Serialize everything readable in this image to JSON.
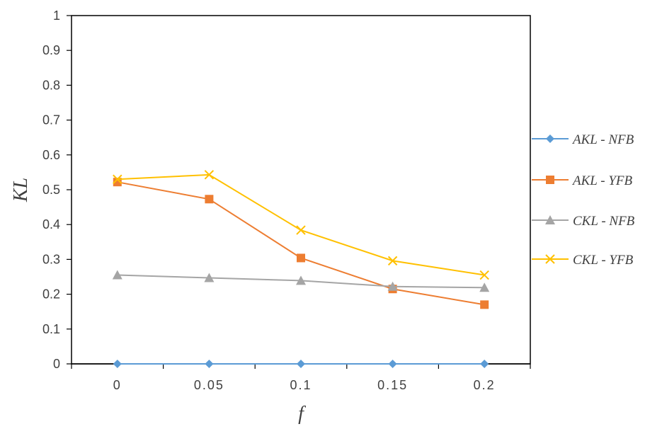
{
  "chart_data": {
    "type": "line",
    "xlabel": "f",
    "ylabel": "KL",
    "ylim": [
      0,
      1
    ],
    "y_ticks": [
      "0",
      "0.1",
      "0.2",
      "0.3",
      "0.4",
      "0.5",
      "0.6",
      "0.7",
      "0.8",
      "0.9",
      "1"
    ],
    "categories": [
      "0",
      "0.05",
      "0.1",
      "0.15",
      "0.2"
    ],
    "legend_position": "right",
    "grid": false,
    "series": [
      {
        "name": "AKL - NFB",
        "color": "#5B9BD5",
        "marker": "diamond",
        "values": [
          0,
          0,
          0,
          0,
          0
        ]
      },
      {
        "name": "AKL - YFB",
        "color": "#ED7D31",
        "marker": "square",
        "values": [
          0.522,
          0.473,
          0.304,
          0.215,
          0.17
        ]
      },
      {
        "name": "CKL - NFB",
        "color": "#A5A5A5",
        "marker": "triangle",
        "values": [
          0.255,
          0.247,
          0.239,
          0.222,
          0.219
        ]
      },
      {
        "name": "CKL - YFB",
        "color": "#FFC000",
        "marker": "x",
        "values": [
          0.53,
          0.543,
          0.384,
          0.296,
          0.255
        ]
      }
    ]
  }
}
